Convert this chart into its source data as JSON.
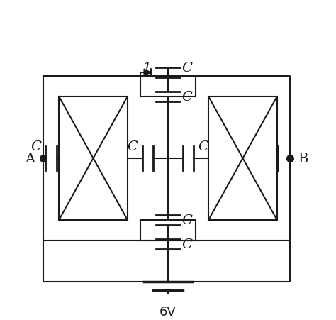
{
  "bg_color": "#ffffff",
  "line_color": "#1a1a1a",
  "lw": 1.5,
  "figsize": [
    4.74,
    4.52
  ],
  "dpi": 100,
  "A_label": "A",
  "B_label": "B",
  "battery_label": "6V",
  "cap_label": "C",
  "diode_label": "1"
}
